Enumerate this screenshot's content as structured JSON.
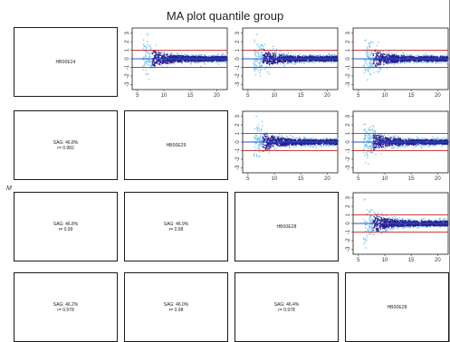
{
  "chart_data": {
    "type": "scatter",
    "title": "MA plot quantile group",
    "ylabel": "M",
    "layout": "pairs-matrix",
    "n": 4,
    "samples": [
      "HB00E24",
      "HB00E29",
      "HB00E28",
      "HB00E28"
    ],
    "stats": [
      {
        "row": 1,
        "col": 0,
        "sad": "SAG: 46.8%",
        "r": "r= 0.982"
      },
      {
        "row": 2,
        "col": 0,
        "sad": "SAG: 46.8%",
        "r": "r= 0.99"
      },
      {
        "row": 2,
        "col": 1,
        "sad": "SAG: 46.9%",
        "r": "r= 0.98"
      },
      {
        "row": 3,
        "col": 0,
        "sad": "SAG: 46.2%",
        "r": "r= 0.978"
      },
      {
        "row": 3,
        "col": 1,
        "sad": "SAG: 46.0%",
        "r": "r= 0.98"
      },
      {
        "row": 3,
        "col": 2,
        "sad": "SAG: 46.4%",
        "r": "r= 0.978"
      }
    ],
    "ma_panels": [
      {
        "row": 0,
        "col": 1
      },
      {
        "row": 0,
        "col": 2
      },
      {
        "row": 0,
        "col": 3
      },
      {
        "row": 1,
        "col": 2
      },
      {
        "row": 1,
        "col": 3
      },
      {
        "row": 2,
        "col": 3
      }
    ],
    "xlim": [
      4,
      22
    ],
    "ylim": [
      -3.6,
      3.6
    ],
    "x_ticks": [
      5,
      10,
      15,
      20
    ],
    "y_ticks": [
      -3,
      -2,
      -1,
      0,
      1,
      2,
      3
    ],
    "h_lines": [
      {
        "y": 1,
        "color": "#cc2222"
      },
      {
        "y": 0,
        "color": "#2255cc"
      },
      {
        "y": -1,
        "color": "#cc2222"
      }
    ],
    "point_colors": {
      "dense": "#2a1f8f",
      "sparse": "#7ec8ee"
    }
  }
}
